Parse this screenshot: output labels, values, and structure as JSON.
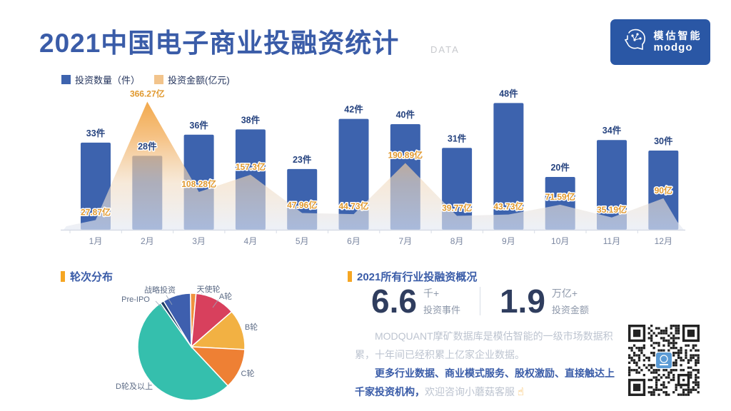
{
  "header": {
    "title": "2021中国电子商业投融资统计",
    "data_label": "DATA",
    "logo": {
      "brand_cn": "模估智能",
      "brand_en": "modgo"
    }
  },
  "combo_section": {
    "legend": [
      {
        "label": "投资数量（件）",
        "color": "#3d63ae"
      },
      {
        "label": "投资金额(亿元)",
        "color": "#f2c48c"
      }
    ]
  },
  "pie_section": {
    "heading": "轮次分布"
  },
  "overview": {
    "heading": "2021所有行业投融资概况",
    "stats": [
      {
        "value": "6.6",
        "unit": "千+",
        "label": "投资事件"
      },
      {
        "value": "1.9",
        "unit": "万亿+",
        "label": "投资金额"
      }
    ],
    "para1": "MODQUANT摩矿数据库是模估智能的一级市场数据积累，十年间已经积累上亿家企业数据。",
    "para2_highlight": "更多行业数据、商业模式服务、股权激励、直接触达上千家投资机构，",
    "para2_rest": "欢迎咨询小蘑菇客服 ",
    "hand_icon": "☝"
  },
  "colors": {
    "accent_blue": "#3a5ca8",
    "accent_orange": "#f5a623",
    "bar_blue": "#3d63ae",
    "area_orange": "#f1a038",
    "count_label": "#26437f",
    "amount_label": "#e0992f",
    "axis_gray": "#d7dce6",
    "month_label": "#7a86a0"
  },
  "chart_data": [
    {
      "type": "bar",
      "title": "2021中国电子商业投融资统计（月度）",
      "categories": [
        "1月",
        "2月",
        "3月",
        "4月",
        "5月",
        "6月",
        "7月",
        "8月",
        "9月",
        "10月",
        "11月",
        "12月"
      ],
      "series": [
        {
          "name": "投资数量（件）",
          "chart": "bar",
          "unit": "件",
          "color": "#3d63ae",
          "values": [
            33,
            28,
            36,
            38,
            23,
            42,
            40,
            31,
            48,
            20,
            34,
            30
          ]
        },
        {
          "name": "投资金额(亿元)",
          "chart": "area",
          "unit": "亿",
          "color": "#f1a038",
          "values": [
            27.87,
            366.27,
            108.28,
            157.3,
            47.96,
            44.73,
            190.89,
            39.77,
            43.73,
            71.59,
            35.19,
            90
          ],
          "labels": [
            "27.87",
            "366.27",
            "108.28",
            "157.3",
            "47.96",
            "44.73",
            "190.89",
            "39.77",
            "43.73",
            "71.59",
            "35.19",
            "90"
          ]
        }
      ],
      "ylim_bar": [
        0,
        54
      ],
      "ylim_area": [
        0,
        400
      ],
      "grid": false,
      "legend_position": "top"
    },
    {
      "type": "pie",
      "title": "轮次分布",
      "start_angle": -1,
      "slices": [
        {
          "label": "天使轮",
          "value": 1.7,
          "color": "#f0923f",
          "label_pos": [
            192,
            17
          ],
          "leader": [
            [
              183,
              23
            ],
            [
              172,
              34
            ]
          ]
        },
        {
          "label": "A轮",
          "value": 12.2,
          "color": "#d8405d",
          "label_pos": [
            216,
            27
          ],
          "leader": [
            [
              206,
              32
            ],
            [
              198,
              43
            ]
          ]
        },
        {
          "label": "B轮",
          "value": 12.2,
          "color": "#f2b143",
          "label_pos": [
            252,
            70
          ]
        },
        {
          "label": "C轮",
          "value": 12.2,
          "color": "#ee8034",
          "label_pos": [
            247,
            135
          ]
        },
        {
          "label": "D轮及以上",
          "value": 52.2,
          "color": "#35bfad",
          "label_pos": [
            88,
            153
          ]
        },
        {
          "label": "Pre-IPO",
          "value": 1.1,
          "color": "#1e3b66",
          "label_pos": [
            90,
            31
          ],
          "leader": [
            [
              118,
              34
            ],
            [
              130,
              47
            ]
          ]
        },
        {
          "label": "战略投资",
          "value": 8.4,
          "color": "#3e5fae",
          "label_pos": [
            124,
            18
          ],
          "leader": [
            [
              133,
              26
            ],
            [
              141,
              39
            ]
          ]
        }
      ]
    }
  ]
}
